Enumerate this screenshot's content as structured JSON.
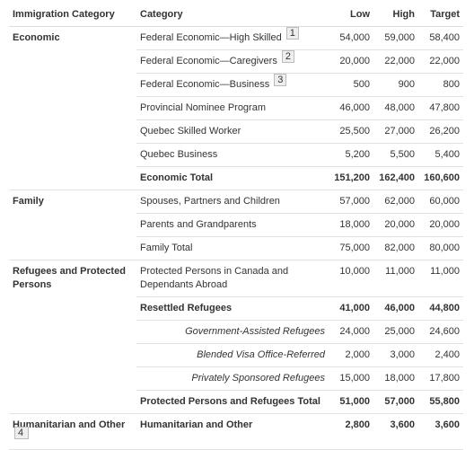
{
  "table": {
    "header": [
      "Immigration Category",
      "Category",
      "Low",
      "High",
      "Target"
    ],
    "groups": [
      {
        "name": "Economic",
        "rows": [
          {
            "category": "Federal Economic—High Skilled",
            "note": "1",
            "values": [
              "54,000",
              "59,000",
              "58,400"
            ]
          },
          {
            "category": "Federal Economic—Caregivers",
            "note": "2",
            "values": [
              "20,000",
              "22,000",
              "22,000"
            ]
          },
          {
            "category": "Federal Economic—Business",
            "note": "3",
            "values": [
              "500",
              "900",
              "800"
            ]
          },
          {
            "category": "Provincial Nominee Program",
            "values": [
              "46,000",
              "48,000",
              "47,800"
            ]
          },
          {
            "category": "Quebec Skilled Worker",
            "values": [
              "25,500",
              "27,000",
              "26,200"
            ]
          },
          {
            "category": "Quebec Business",
            "values": [
              "5,200",
              "5,500",
              "5,400"
            ]
          },
          {
            "category": "Economic Total",
            "values": [
              "151,200",
              "162,400",
              "160,600"
            ]
          }
        ]
      },
      {
        "name": "Family",
        "rows": [
          {
            "category": "Spouses, Partners and Children",
            "values": [
              "57,000",
              "62,000",
              "60,000"
            ]
          },
          {
            "category": "Parents and Grandparents",
            "values": [
              "18,000",
              "20,000",
              "20,000"
            ]
          },
          {
            "category": "Family Total",
            "values": [
              "75,000",
              "82,000",
              "80,000"
            ]
          }
        ]
      },
      {
        "name": "Refugees and Protected Persons",
        "rows": [
          {
            "category": "Protected Persons in Canada and Dependants Abroad",
            "values": [
              "10,000",
              "11,000",
              "11,000"
            ]
          },
          {
            "category": "Resettled Refugees",
            "values": [
              "41,000",
              "46,000",
              "44,800"
            ]
          },
          {
            "category": "Government-Assisted Refugees",
            "values": [
              "24,000",
              "25,000",
              "24,600"
            ]
          },
          {
            "category": "Blended Visa Office-Referred",
            "values": [
              "2,000",
              "3,000",
              "2,400"
            ]
          },
          {
            "category": "Privately Sponsored Refugees",
            "values": [
              "15,000",
              "18,000",
              "17,800"
            ]
          },
          {
            "category": "Protected Persons and Refugees Total",
            "values": [
              "51,000",
              "57,000",
              "55,800"
            ]
          }
        ]
      },
      {
        "name": "Humanitarian and Other",
        "note": "4",
        "rows": [
          {
            "category": "Humanitarian and Other",
            "values": [
              "2,800",
              "3,600",
              "3,600"
            ]
          }
        ]
      }
    ]
  }
}
